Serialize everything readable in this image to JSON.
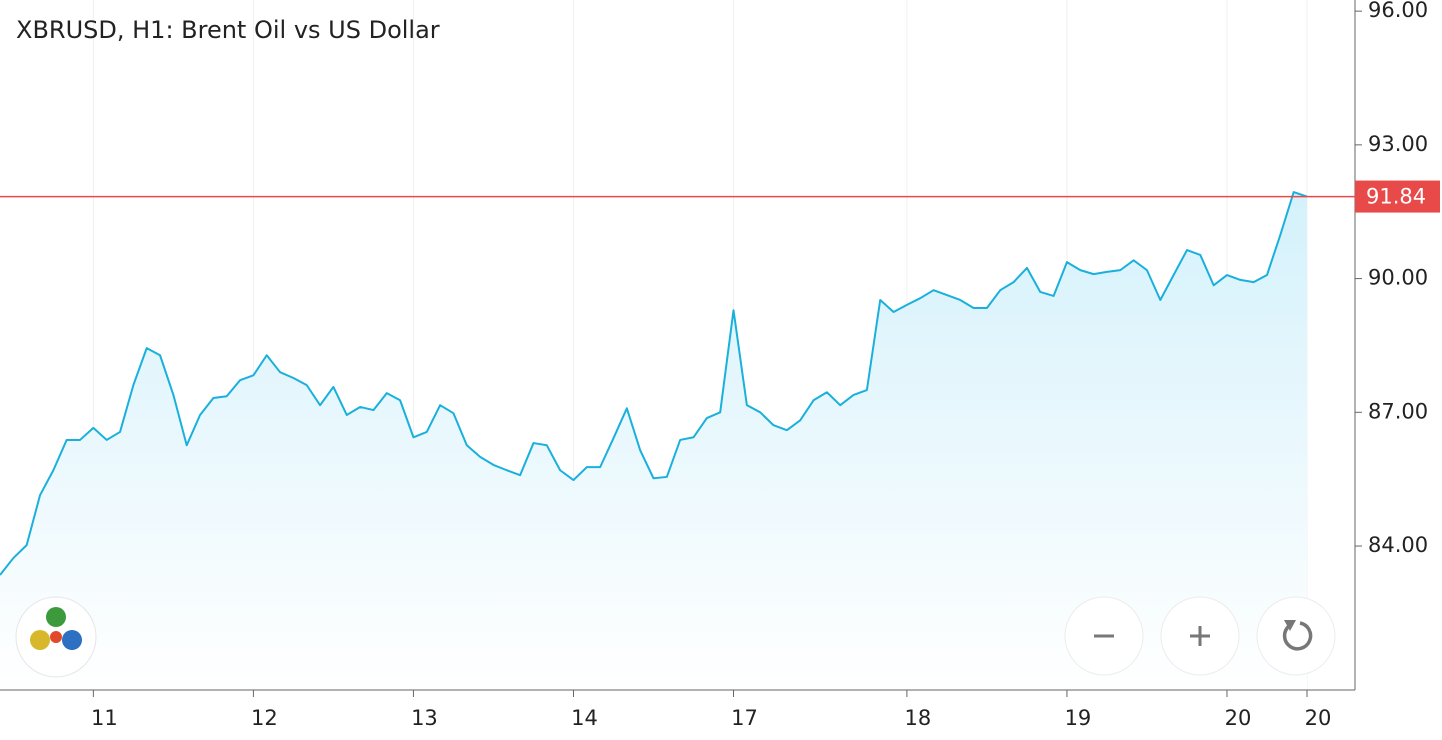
{
  "chart_data": {
    "type": "line",
    "title": "XBRUSD, H1: Brent Oil vs US Dollar",
    "color": "#1ab0dc",
    "categories": [
      null,
      null,
      null,
      null,
      null,
      null,
      null,
      "11",
      null,
      null,
      null,
      null,
      null,
      null,
      null,
      null,
      null,
      null,
      null,
      "12",
      null,
      null,
      null,
      null,
      null,
      null,
      null,
      null,
      null,
      null,
      null,
      "13",
      null,
      null,
      null,
      null,
      null,
      null,
      null,
      null,
      null,
      null,
      null,
      "14",
      null,
      null,
      null,
      null,
      null,
      null,
      null,
      null,
      null,
      null,
      null,
      "17",
      null,
      null,
      null,
      null,
      null,
      null,
      null,
      null,
      null,
      null,
      null,
      null,
      "18",
      null,
      null,
      null,
      null,
      null,
      null,
      null,
      null,
      null,
      null,
      null,
      "19",
      null,
      null,
      null,
      null,
      null,
      null,
      null,
      null,
      null,
      null,
      null,
      "20",
      null,
      null,
      null,
      null,
      null,
      "20"
    ],
    "values": [
      83.35,
      83.73,
      84.02,
      85.14,
      85.7,
      86.38,
      86.38,
      86.65,
      86.38,
      86.56,
      87.61,
      88.44,
      88.28,
      87.39,
      86.26,
      86.94,
      87.32,
      87.36,
      87.72,
      87.83,
      88.28,
      87.9,
      87.77,
      87.61,
      87.16,
      87.57,
      86.94,
      87.12,
      87.05,
      87.43,
      87.27,
      86.44,
      86.56,
      87.16,
      86.98,
      86.26,
      86.0,
      85.82,
      85.7,
      85.59,
      86.31,
      86.26,
      85.7,
      85.48,
      85.77,
      85.77,
      86.42,
      87.09,
      86.15,
      85.52,
      85.55,
      86.38,
      86.44,
      86.87,
      87.0,
      89.29,
      87.16,
      87.0,
      86.71,
      86.6,
      86.82,
      87.27,
      87.45,
      87.16,
      87.39,
      87.5,
      89.52,
      89.25,
      89.41,
      89.56,
      89.74,
      89.63,
      89.52,
      89.34,
      89.34,
      89.74,
      89.92,
      90.24,
      89.7,
      89.61,
      90.37,
      90.19,
      90.1,
      90.15,
      90.19,
      90.41,
      90.19,
      89.52,
      90.08,
      90.64,
      90.53,
      89.85,
      90.08,
      89.97,
      89.92,
      90.08,
      90.98,
      91.94,
      91.84
    ],
    "ylim": [
      80.77,
      96.25
    ],
    "yticks": [
      {
        "value": 84,
        "label": "84.00"
      },
      {
        "value": 87,
        "label": "87.00"
      },
      {
        "value": 90,
        "label": "90.00"
      },
      {
        "value": 93,
        "label": "93.00"
      },
      {
        "value": 96,
        "label": "96.00"
      }
    ],
    "current_price": 91.84,
    "current_price_color": "#e84a4a",
    "grid": true
  }
}
